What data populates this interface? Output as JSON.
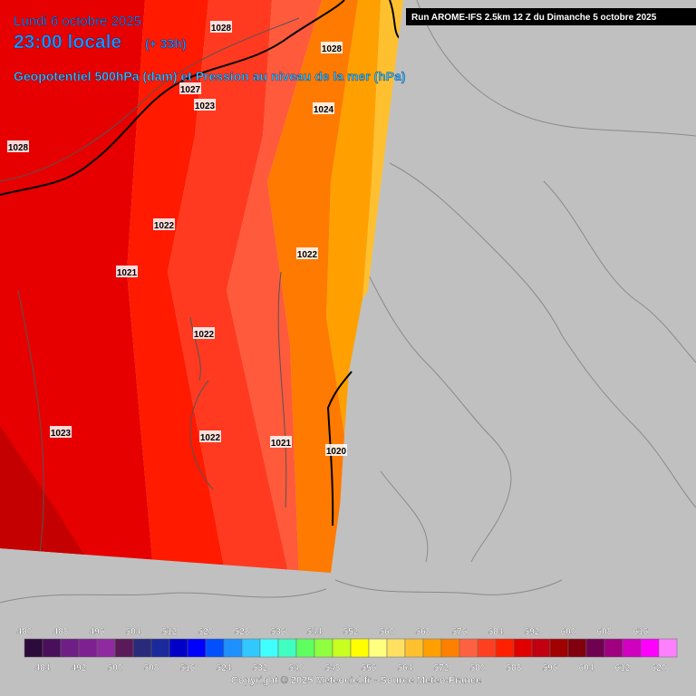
{
  "header": {
    "date": "Lundi 6 octobre 2025",
    "time": "23:00 locale",
    "lead": "(+ 33h)",
    "field": "Geopotentiel 500hPa (dam) et Pression au niveau de la mer (hPa)",
    "run": "Run AROME-IFS 2.5km 12 Z du Dimanche 5 octobre 2025"
  },
  "isobar_labels": [
    "1028",
    "1028",
    "1027",
    "1023",
    "1024",
    "1028",
    "1022",
    "1022",
    "1021",
    "1022",
    "1023",
    "1022",
    "1021",
    "1020"
  ],
  "legend": {
    "top_labels": [
      "480",
      "488",
      "496",
      "504",
      "512",
      "520",
      "528",
      "536",
      "544",
      "552",
      "560",
      "568",
      "576",
      "584",
      "592",
      "600",
      "608",
      "616"
    ],
    "bottom_labels": [
      "484",
      "492",
      "500",
      "508",
      "516",
      "524",
      "532",
      "540",
      "548",
      "556",
      "564",
      "572",
      "580",
      "588",
      "596",
      "604",
      "612",
      "620"
    ],
    "colors": [
      "#2d0a3c",
      "#4a0f5c",
      "#6e1e84",
      "#7e2090",
      "#8f2aa0",
      "#5a1a5a",
      "#2a2a7a",
      "#1a2a9a",
      "#0000c8",
      "#0000ff",
      "#0050ff",
      "#1e90ff",
      "#30c8ff",
      "#40ffff",
      "#40ffc0",
      "#60ff60",
      "#90ff40",
      "#c8ff20",
      "#ffff00",
      "#ffff80",
      "#ffe060",
      "#ffc030",
      "#ffa000",
      "#ff8000",
      "#ff6040",
      "#ff4020",
      "#ff2000",
      "#e00000",
      "#c00010",
      "#a00000",
      "#800010",
      "#700050",
      "#a00080",
      "#d000c0",
      "#ff00ff",
      "#ff80ff"
    ]
  },
  "footer": {
    "copyright": "Copyright © 2025 Meteociel.fr - Source Meteo-France"
  }
}
